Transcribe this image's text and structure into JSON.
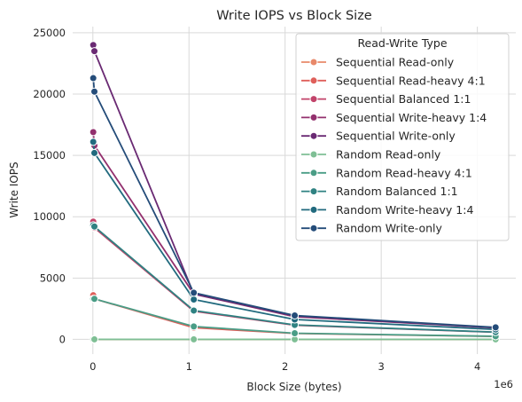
{
  "chart_data": {
    "type": "line",
    "title": "Write IOPS vs Block Size",
    "xlabel": "Block Size (bytes)",
    "ylabel": "Write IOPS",
    "x_offset_label": "1e6",
    "xlim": [
      -0.21,
      4.4
    ],
    "ylim": [
      -1200,
      25500
    ],
    "xticks": [
      0,
      1,
      2,
      3,
      4
    ],
    "yticks": [
      0,
      5000,
      10000,
      15000,
      20000,
      25000
    ],
    "xtick_labels": [
      "0",
      "1",
      "2",
      "3",
      "4"
    ],
    "ytick_labels": [
      "0",
      "5000",
      "10000",
      "15000",
      "20000",
      "25000"
    ],
    "grid": true,
    "legend_title": "Read-Write Type",
    "legend_position": "top-right",
    "x_units_note": "x values in millions of bytes",
    "x": [
      0.004,
      0.016,
      1.05,
      2.1,
      4.19
    ],
    "series": [
      {
        "name": "Sequential Read-only",
        "color": "#e8896a",
        "values": [
          0,
          0,
          0,
          0,
          0
        ]
      },
      {
        "name": "Sequential Read-heavy 4:1",
        "color": "#df5f5a",
        "values": [
          3600,
          3300,
          950,
          480,
          240
        ]
      },
      {
        "name": "Sequential Balanced 1:1",
        "color": "#c2436a",
        "values": [
          9600,
          9100,
          2300,
          1150,
          580
        ]
      },
      {
        "name": "Sequential Write-heavy 1:4",
        "color": "#93306e",
        "values": [
          16900,
          15800,
          3700,
          1850,
          940
        ]
      },
      {
        "name": "Sequential Write-only",
        "color": "#6a2a73",
        "values": [
          24000,
          23500,
          3700,
          1900,
          950
        ]
      },
      {
        "name": "Random Read-only",
        "color": "#7fbf95",
        "values": [
          0,
          0,
          0,
          0,
          0
        ]
      },
      {
        "name": "Random Read-heavy 4:1",
        "color": "#4a9d86",
        "values": [
          3300,
          3300,
          1050,
          500,
          250
        ]
      },
      {
        "name": "Random Balanced 1:1",
        "color": "#2f8282",
        "values": [
          9300,
          9200,
          2350,
          1180,
          590
        ]
      },
      {
        "name": "Random Write-heavy 1:4",
        "color": "#216a7e",
        "values": [
          16100,
          15200,
          3250,
          1620,
          810
        ]
      },
      {
        "name": "Random Write-only",
        "color": "#244c79",
        "values": [
          21300,
          20200,
          3800,
          1950,
          980
        ]
      }
    ]
  }
}
